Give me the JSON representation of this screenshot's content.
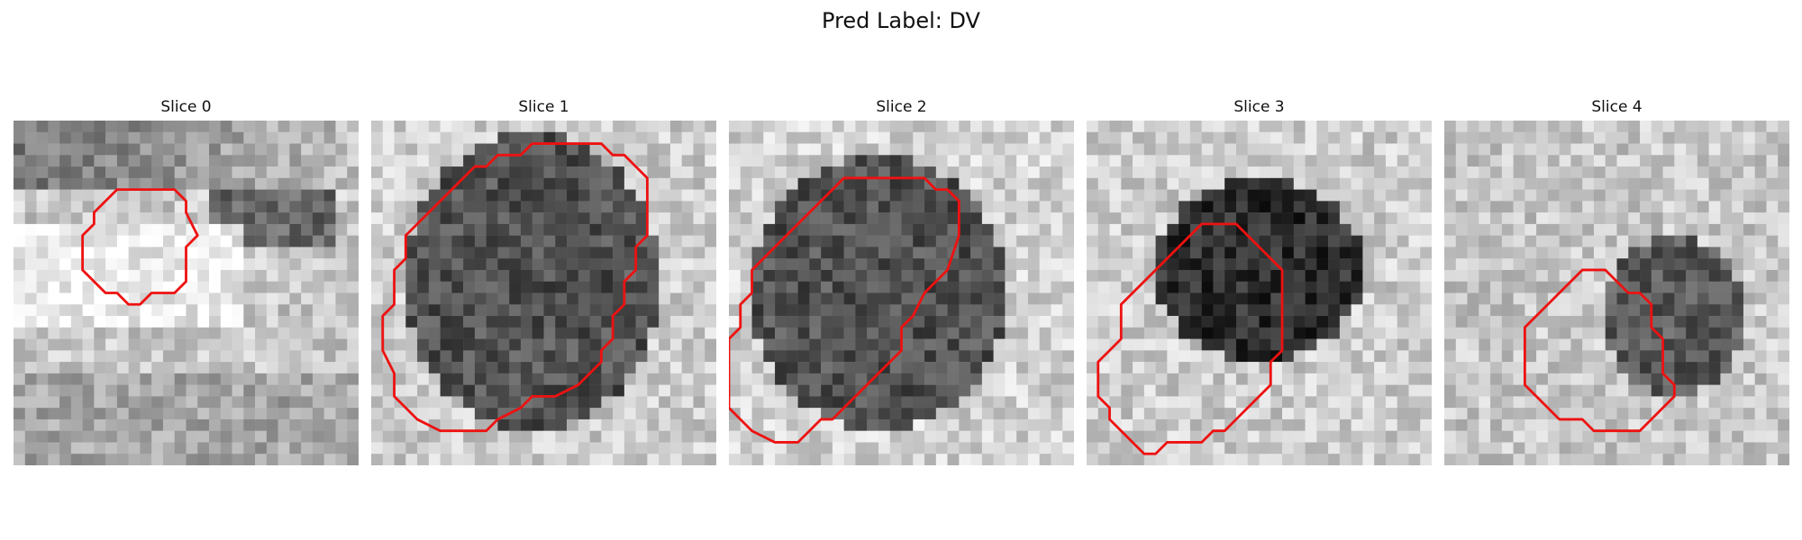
{
  "title": "Pred Label: DV",
  "panels": [
    {
      "label": "Slice 0",
      "contour": [
        [
          11,
          6
        ],
        [
          14,
          6
        ],
        [
          15,
          7
        ],
        [
          15,
          8
        ],
        [
          16,
          10
        ],
        [
          15,
          11
        ],
        [
          15,
          14
        ],
        [
          14,
          15
        ],
        [
          12,
          15
        ],
        [
          11,
          16
        ],
        [
          10,
          16
        ],
        [
          9,
          15
        ],
        [
          8,
          15
        ],
        [
          7,
          14
        ],
        [
          6,
          13
        ],
        [
          6,
          10
        ],
        [
          7,
          9
        ],
        [
          7,
          8
        ],
        [
          8,
          7
        ],
        [
          9,
          6
        ]
      ]
    },
    {
      "label": "Slice 1",
      "contour": [
        [
          16,
          2
        ],
        [
          20,
          2
        ],
        [
          21,
          3
        ],
        [
          22,
          3
        ],
        [
          23,
          4
        ],
        [
          24,
          5
        ],
        [
          24,
          10
        ],
        [
          23,
          11
        ],
        [
          23,
          13
        ],
        [
          22,
          14
        ],
        [
          22,
          16
        ],
        [
          21,
          17
        ],
        [
          21,
          19
        ],
        [
          20,
          20
        ],
        [
          20,
          21
        ],
        [
          19,
          22
        ],
        [
          18,
          23
        ],
        [
          16,
          24
        ],
        [
          14,
          24
        ],
        [
          13,
          25
        ],
        [
          11,
          26
        ],
        [
          10,
          27
        ],
        [
          6,
          27
        ],
        [
          4,
          26
        ],
        [
          3,
          25
        ],
        [
          2,
          24
        ],
        [
          2,
          22
        ],
        [
          1,
          20
        ],
        [
          1,
          17
        ],
        [
          2,
          16
        ],
        [
          2,
          13
        ],
        [
          3,
          12
        ],
        [
          3,
          10
        ],
        [
          5,
          8
        ],
        [
          6,
          7
        ],
        [
          7,
          6
        ],
        [
          8,
          5
        ],
        [
          9,
          4
        ],
        [
          10,
          4
        ],
        [
          11,
          3
        ],
        [
          13,
          3
        ],
        [
          14,
          2
        ]
      ]
    },
    {
      "label": "Slice 2",
      "contour": [
        [
          10,
          5
        ],
        [
          12,
          5
        ],
        [
          17,
          5
        ],
        [
          18,
          6
        ],
        [
          19,
          6
        ],
        [
          20,
          7
        ],
        [
          20,
          10
        ],
        [
          19,
          13
        ],
        [
          18,
          14
        ],
        [
          17,
          15
        ],
        [
          16,
          17
        ],
        [
          15,
          18
        ],
        [
          15,
          20
        ],
        [
          14,
          21
        ],
        [
          13,
          22
        ],
        [
          12,
          23
        ],
        [
          11,
          24
        ],
        [
          10,
          25
        ],
        [
          9,
          26
        ],
        [
          8,
          26
        ],
        [
          7,
          27
        ],
        [
          6,
          28
        ],
        [
          4,
          28
        ],
        [
          2,
          27
        ],
        [
          1,
          26
        ],
        [
          0,
          25
        ],
        [
          0,
          22
        ],
        [
          0,
          19
        ],
        [
          1,
          18
        ],
        [
          1,
          16
        ],
        [
          2,
          15
        ],
        [
          2,
          13
        ],
        [
          3,
          12
        ],
        [
          4,
          11
        ],
        [
          5,
          10
        ],
        [
          6,
          9
        ],
        [
          7,
          8
        ],
        [
          8,
          7
        ],
        [
          9,
          6
        ]
      ]
    },
    {
      "label": "Slice 3",
      "contour": [
        [
          10,
          9
        ],
        [
          13,
          9
        ],
        [
          14,
          10
        ],
        [
          15,
          11
        ],
        [
          16,
          12
        ],
        [
          17,
          13
        ],
        [
          17,
          20
        ],
        [
          16,
          21
        ],
        [
          16,
          23
        ],
        [
          15,
          24
        ],
        [
          14,
          25
        ],
        [
          13,
          26
        ],
        [
          12,
          27
        ],
        [
          11,
          27
        ],
        [
          10,
          28
        ],
        [
          7,
          28
        ],
        [
          6,
          29
        ],
        [
          5,
          29
        ],
        [
          4,
          28
        ],
        [
          3,
          27
        ],
        [
          2,
          26
        ],
        [
          2,
          25
        ],
        [
          1,
          24
        ],
        [
          1,
          21
        ],
        [
          2,
          20
        ],
        [
          3,
          19
        ],
        [
          3,
          16
        ],
        [
          4,
          15
        ],
        [
          5,
          14
        ],
        [
          6,
          13
        ],
        [
          7,
          12
        ],
        [
          8,
          11
        ],
        [
          9,
          10
        ]
      ]
    },
    {
      "label": "Slice 4",
      "contour": [
        [
          12,
          13
        ],
        [
          14,
          13
        ],
        [
          15,
          14
        ],
        [
          16,
          15
        ],
        [
          17,
          15
        ],
        [
          18,
          16
        ],
        [
          18,
          18
        ],
        [
          19,
          19
        ],
        [
          19,
          22
        ],
        [
          20,
          23
        ],
        [
          20,
          24
        ],
        [
          19,
          25
        ],
        [
          18,
          26
        ],
        [
          17,
          27
        ],
        [
          13,
          27
        ],
        [
          12,
          26
        ],
        [
          10,
          26
        ],
        [
          9,
          25
        ],
        [
          8,
          24
        ],
        [
          7,
          23
        ],
        [
          7,
          18
        ],
        [
          8,
          17
        ],
        [
          9,
          16
        ],
        [
          10,
          15
        ],
        [
          11,
          14
        ]
      ]
    }
  ],
  "colors": {
    "contour": "#ee1111"
  },
  "image_content": "grayscale-microscopy-patch"
}
